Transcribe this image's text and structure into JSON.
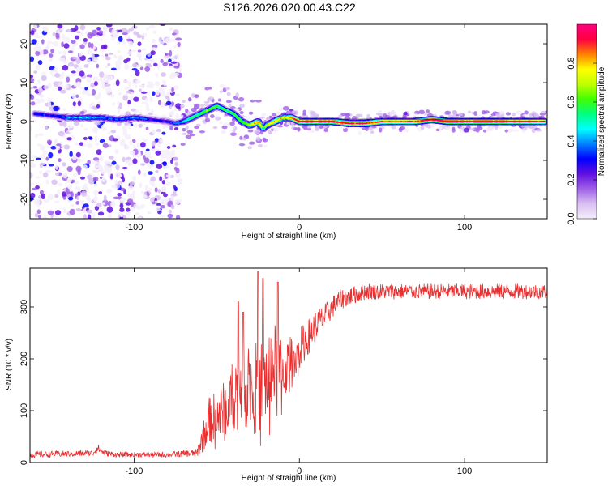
{
  "title": "S126.2026.020.00.43.C22",
  "colorbar": {
    "label": "Normalized spectral amplitude",
    "ticks": [
      "0.0",
      "0.2",
      "0.4",
      "0.6",
      "0.8"
    ],
    "tick_values": [
      0.0,
      0.2,
      0.4,
      0.6,
      0.8
    ],
    "range": [
      0,
      1
    ],
    "colors": [
      "#f4eefa",
      "#d8c0f2",
      "#a060e8",
      "#6010e0",
      "#0000ff",
      "#0080ff",
      "#00ffff",
      "#00ff80",
      "#40ff00",
      "#c0ff00",
      "#ffff00",
      "#ff8000",
      "#ff0040",
      "#ff0080"
    ]
  },
  "chart_data": [
    {
      "type": "heatmap",
      "title": "S126.2026.020.00.43.C22",
      "xlabel": "Height of straight line (km)",
      "ylabel": "Frequency (Hz)",
      "xlim": [
        -163,
        150
      ],
      "ylim": [
        -25,
        25
      ],
      "x_ticks": [
        -100,
        0,
        100
      ],
      "x_tick_labels": [
        "-100",
        "0",
        "100"
      ],
      "y_ticks": [
        -20,
        -10,
        0,
        10,
        20
      ],
      "y_tick_labels": [
        "-20",
        "-10",
        "0",
        "10",
        "20"
      ],
      "noise_region_x": [
        -163,
        -72
      ],
      "ridge": {
        "x": [
          -160,
          -150,
          -140,
          -130,
          -120,
          -110,
          -100,
          -90,
          -80,
          -75,
          -70,
          -65,
          -60,
          -55,
          -50,
          -45,
          -40,
          -35,
          -30,
          -25,
          -22,
          -20,
          -15,
          -10,
          -5,
          0,
          10,
          20,
          30,
          40,
          50,
          60,
          70,
          80,
          90,
          100,
          110,
          120,
          130,
          140,
          148
        ],
        "y": [
          2,
          1.5,
          1,
          1,
          1,
          0.5,
          1,
          0.5,
          0,
          -0.5,
          0,
          1,
          2,
          3,
          4,
          3,
          2,
          0,
          -1,
          0,
          -2,
          -1,
          0,
          1,
          1,
          0,
          0,
          0,
          -0.5,
          -0.5,
          0,
          0,
          0,
          0.5,
          0,
          0,
          0,
          0,
          0,
          0,
          0
        ],
        "amplitude": [
          0.35,
          0.3,
          0.4,
          0.45,
          0.4,
          0.35,
          0.4,
          0.3,
          0.3,
          0.35,
          0.45,
          0.55,
          0.6,
          0.65,
          0.6,
          0.55,
          0.6,
          0.6,
          0.7,
          0.85,
          0.55,
          0.7,
          0.8,
          0.75,
          0.8,
          0.9,
          0.92,
          0.93,
          0.9,
          0.88,
          0.85,
          0.85,
          0.87,
          0.9,
          0.95,
          0.95,
          0.96,
          0.96,
          0.9,
          0.9,
          0.88
        ]
      }
    },
    {
      "type": "line",
      "xlabel": "Height of straight line (km)",
      "ylabel": "SNR (10 * v/v)",
      "xlim": [
        -163,
        150
      ],
      "ylim": [
        0,
        375
      ],
      "x_ticks": [
        -100,
        0,
        100
      ],
      "x_tick_labels": [
        "-100",
        "0",
        "100"
      ],
      "y_ticks": [
        0,
        100,
        200,
        300
      ],
      "y_tick_labels": [
        "0",
        "100",
        "200",
        "300"
      ],
      "color": "#e83030",
      "envelope": {
        "x": [
          -163,
          -125,
          -122,
          -118,
          -110,
          -100,
          -80,
          -62,
          -58,
          -55,
          -50,
          -45,
          -40,
          -35,
          -30,
          -25,
          -20,
          -15,
          -10,
          -5,
          0,
          5,
          10,
          15,
          20,
          25,
          30,
          40,
          60,
          80,
          100,
          120,
          150
        ],
        "y": [
          15,
          18,
          28,
          18,
          15,
          15,
          15,
          18,
          50,
          80,
          90,
          100,
          130,
          160,
          150,
          140,
          160,
          190,
          170,
          200,
          220,
          240,
          265,
          280,
          300,
          315,
          320,
          330,
          330,
          330,
          330,
          330,
          330
        ],
        "noise": [
          6,
          6,
          8,
          6,
          5,
          5,
          5,
          8,
          30,
          45,
          50,
          60,
          70,
          90,
          90,
          90,
          90,
          80,
          60,
          45,
          40,
          35,
          30,
          25,
          22,
          20,
          18,
          16,
          15,
          15,
          15,
          15,
          15
        ]
      },
      "spikes": [
        {
          "x": -37,
          "y": 310
        },
        {
          "x": -34,
          "y": 290
        },
        {
          "x": -25,
          "y": 368
        },
        {
          "x": -22,
          "y": 355
        },
        {
          "x": -13,
          "y": 348
        }
      ]
    }
  ]
}
